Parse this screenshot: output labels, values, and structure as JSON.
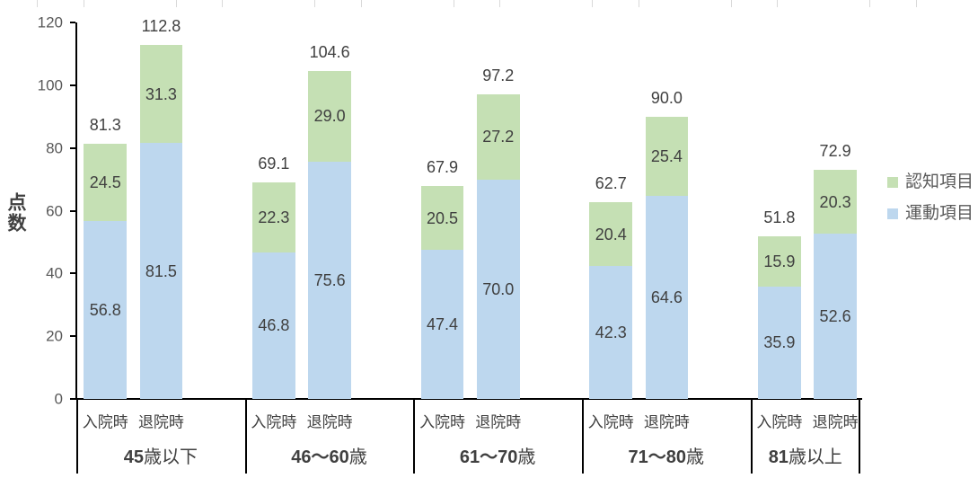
{
  "chart_data": {
    "type": "bar",
    "stacked": true,
    "title": "",
    "xlabel": "",
    "ylabel": "点数",
    "ylim": [
      0,
      120
    ],
    "yticks": [
      0,
      20,
      40,
      60,
      80,
      100,
      120
    ],
    "grid": false,
    "legend_position": "right",
    "categories": [
      "45歳以下",
      "46〜60歳",
      "61〜70歳",
      "71〜80歳",
      "81歳以上"
    ],
    "category_parts": [
      {
        "bold": "45",
        "rest": "歳以下"
      },
      {
        "bold": "46〜60",
        "rest": "歳"
      },
      {
        "bold": "61〜70",
        "rest": "歳"
      },
      {
        "bold": "71〜80",
        "rest": "歳"
      },
      {
        "bold": "81",
        "rest": "歳以上"
      }
    ],
    "sub_categories": [
      "入院時",
      "退院時"
    ],
    "series": [
      {
        "name": "運動項目",
        "color": "#bdd7ee",
        "values": [
          [
            56.8,
            81.5
          ],
          [
            46.8,
            75.6
          ],
          [
            47.4,
            70.0
          ],
          [
            42.3,
            64.6
          ],
          [
            35.9,
            52.6
          ]
        ],
        "labels": [
          [
            "56.8",
            "81.5"
          ],
          [
            "46.8",
            "75.6"
          ],
          [
            "47.4",
            "70.0"
          ],
          [
            "42.3",
            "64.6"
          ],
          [
            "35.9",
            "52.6"
          ]
        ]
      },
      {
        "name": "認知項目",
        "color": "#c5e0b4",
        "values": [
          [
            24.5,
            31.3
          ],
          [
            22.3,
            29.0
          ],
          [
            20.5,
            27.2
          ],
          [
            20.4,
            25.4
          ],
          [
            15.9,
            20.3
          ]
        ],
        "labels": [
          [
            "24.5",
            "31.3"
          ],
          [
            "22.3",
            "29.0"
          ],
          [
            "20.5",
            "27.2"
          ],
          [
            "20.4",
            "25.4"
          ],
          [
            "15.9",
            "20.3"
          ]
        ]
      }
    ],
    "totals": {
      "values": [
        [
          81.3,
          112.8
        ],
        [
          69.1,
          104.6
        ],
        [
          67.9,
          97.2
        ],
        [
          62.7,
          90.0
        ],
        [
          51.8,
          72.9
        ]
      ],
      "labels": [
        [
          "81.3",
          "112.8"
        ],
        [
          "69.1",
          "104.6"
        ],
        [
          "67.9",
          "97.2"
        ],
        [
          "62.7",
          "90.0"
        ],
        [
          "51.8",
          "72.9"
        ]
      ]
    },
    "legend": [
      {
        "label": "認知項目",
        "color": "#c5e0b4"
      },
      {
        "label": "運動項目",
        "color": "#bdd7ee"
      }
    ],
    "colors": {
      "axis_line": "#000000",
      "tick_label": "#595959",
      "data_label": "#404040",
      "legend_label": "#595959",
      "top_gridline": "#d9d9d9"
    }
  }
}
